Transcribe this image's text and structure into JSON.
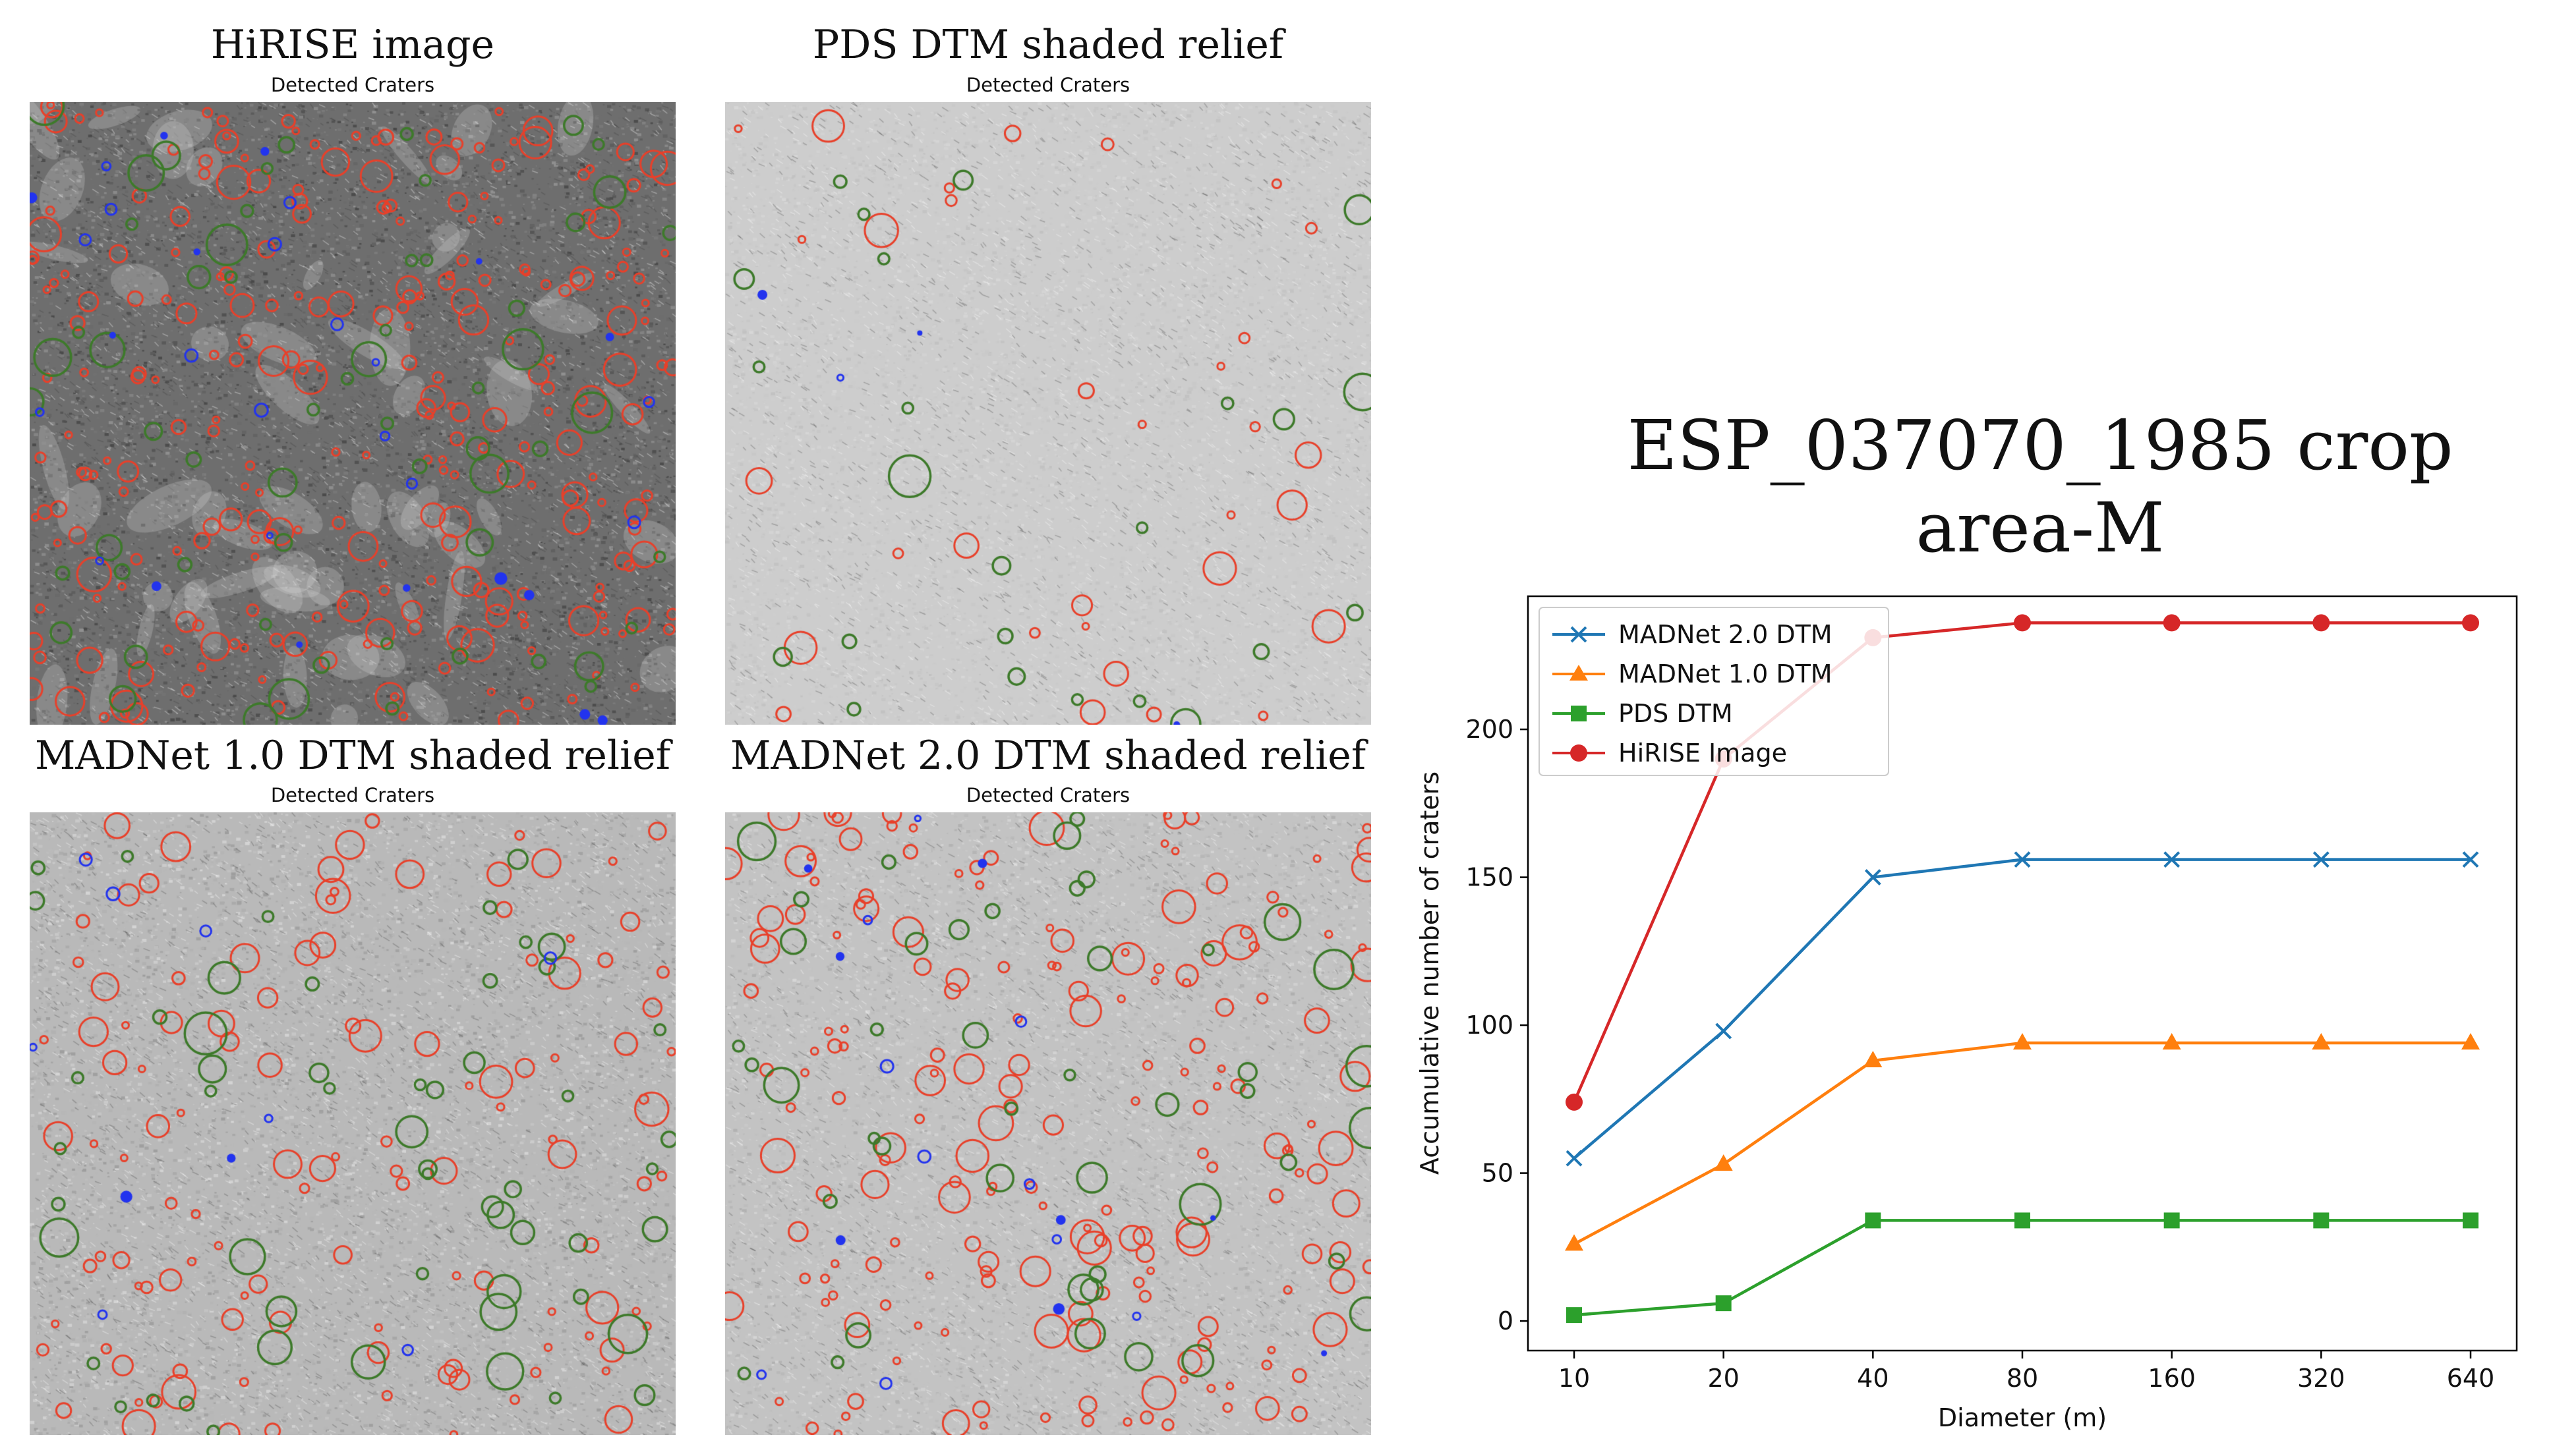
{
  "panels": [
    {
      "title": "HiRISE image",
      "subtitle": "Detected Craters",
      "style": "hirise"
    },
    {
      "title": "PDS DTM shaded relief",
      "subtitle": "Detected Craters",
      "style": "pds"
    },
    {
      "title": "MADNet 1.0 DTM shaded relief",
      "subtitle": "Detected Craters",
      "style": "madnet1"
    },
    {
      "title": "MADNet 2.0 DTM shaded relief",
      "subtitle": "Detected Craters",
      "style": "madnet2"
    }
  ],
  "chart_title_line1": "ESP_037070_1985 crop",
  "chart_title_line2": "area-M",
  "colors": {
    "red_crater": "#e8402a",
    "green_crater": "#3d7a2a",
    "blue_crater": "#2233ee",
    "madnet2": "#1f77b4",
    "madnet1": "#ff7f0e",
    "pds": "#2ca02c",
    "hirise": "#d62728"
  },
  "chart_data": {
    "type": "line",
    "title": "ESP_037070_1985 crop area-M",
    "xlabel": "Diameter (m)",
    "ylabel": "Accumulative number of craters",
    "categories": [
      "10",
      "20",
      "40",
      "80",
      "160",
      "320",
      "640"
    ],
    "ylim": [
      -10,
      245
    ],
    "yticks": [
      0,
      50,
      100,
      150,
      200
    ],
    "legend_position": "upper-left",
    "series": [
      {
        "name": "MADNet 2.0 DTM",
        "marker": "x",
        "color": "#1f77b4",
        "values": [
          55,
          98,
          150,
          156,
          156,
          156,
          156
        ]
      },
      {
        "name": "MADNet 1.0 DTM",
        "marker": "triangle",
        "color": "#ff7f0e",
        "values": [
          26,
          53,
          88,
          94,
          94,
          94,
          94
        ]
      },
      {
        "name": "PDS DTM",
        "marker": "square",
        "color": "#2ca02c",
        "values": [
          2,
          6,
          34,
          34,
          34,
          34,
          34
        ]
      },
      {
        "name": "HiRISE Image",
        "marker": "circle",
        "color": "#d62728",
        "values": [
          74,
          190,
          231,
          236,
          236,
          236,
          236
        ]
      }
    ]
  }
}
